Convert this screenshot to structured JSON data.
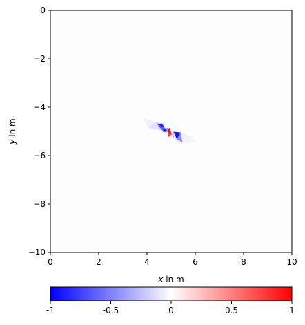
{
  "chart_data": [
    {
      "type": "heatmap",
      "title": "",
      "xlabel": {
        "var": "x",
        "rest": " in m"
      },
      "ylabel": {
        "var": "y",
        "rest": " in m"
      },
      "xlim": [
        0,
        10
      ],
      "ylim": [
        -10,
        0
      ],
      "xticks": [
        0,
        2,
        4,
        6,
        8,
        10
      ],
      "yticks": [
        0,
        -2,
        -4,
        -6,
        -8,
        -10
      ],
      "grid": false,
      "colormap": {
        "low": "#0000ff",
        "mid": "#ffffff",
        "high": "#ff0000",
        "vmin": -1,
        "vmax": 1
      },
      "triangles": [
        {
          "pts": [
            [
              3.85,
              -4.45
            ],
            [
              4.35,
              -4.62
            ],
            [
              4.05,
              -4.85
            ]
          ],
          "value": -0.06
        },
        {
          "pts": [
            [
              4.05,
              -4.85
            ],
            [
              4.35,
              -4.62
            ],
            [
              4.55,
              -4.95
            ]
          ],
          "value": -0.12
        },
        {
          "pts": [
            [
              4.35,
              -4.62
            ],
            [
              4.75,
              -4.7
            ],
            [
              4.55,
              -4.95
            ]
          ],
          "value": -0.2
        },
        {
          "pts": [
            [
              4.45,
              -4.72
            ],
            [
              4.62,
              -4.68
            ],
            [
              4.74,
              -4.88
            ]
          ],
          "value": -0.85
        },
        {
          "pts": [
            [
              4.45,
              -4.72
            ],
            [
              4.74,
              -4.88
            ],
            [
              4.68,
              -5.02
            ]
          ],
          "value": -0.62
        },
        {
          "pts": [
            [
              4.68,
              -5.02
            ],
            [
              4.74,
              -4.88
            ],
            [
              4.85,
              -5.0
            ]
          ],
          "value": -0.9
        },
        {
          "pts": [
            [
              4.74,
              -4.88
            ],
            [
              4.9,
              -4.85
            ],
            [
              4.85,
              -5.0
            ]
          ],
          "value": -0.4
        },
        {
          "pts": [
            [
              4.85,
              -5.0
            ],
            [
              4.93,
              -4.86
            ],
            [
              5.02,
              -5.12
            ]
          ],
          "value": 1.0
        },
        {
          "pts": [
            [
              4.85,
              -5.0
            ],
            [
              5.02,
              -5.12
            ],
            [
              4.9,
              -5.22
            ]
          ],
          "value": 0.75
        },
        {
          "pts": [
            [
              5.02,
              -5.12
            ],
            [
              5.1,
              -5.02
            ],
            [
              5.12,
              -5.28
            ]
          ],
          "value": -0.25
        },
        {
          "pts": [
            [
              5.1,
              -5.02
            ],
            [
              5.4,
              -5.05
            ],
            [
              5.24,
              -5.32
            ]
          ],
          "value": -0.92
        },
        {
          "pts": [
            [
              5.24,
              -5.32
            ],
            [
              5.4,
              -5.05
            ],
            [
              5.48,
              -5.48
            ]
          ],
          "value": -0.45
        },
        {
          "pts": [
            [
              5.12,
              -5.28
            ],
            [
              5.24,
              -5.32
            ],
            [
              5.48,
              -5.48
            ]
          ],
          "value": -0.15
        },
        {
          "pts": [
            [
              5.4,
              -5.05
            ],
            [
              5.95,
              -5.25
            ],
            [
              5.48,
              -5.48
            ]
          ],
          "value": -0.05
        },
        {
          "pts": [
            [
              5.48,
              -5.48
            ],
            [
              5.95,
              -5.25
            ],
            [
              6.0,
              -5.45
            ]
          ],
          "value": -0.03
        }
      ]
    },
    {
      "type": "colorbar",
      "range": [
        -1,
        1
      ],
      "ticks": [
        -1,
        -0.5,
        0,
        0.5,
        1
      ],
      "tick_labels": [
        "-1",
        "-0.5",
        "0",
        "0.5",
        "1"
      ]
    }
  ]
}
